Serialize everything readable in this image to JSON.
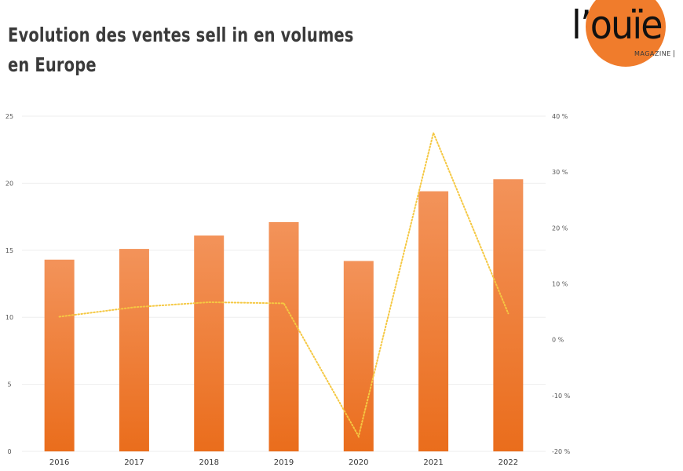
{
  "header": {
    "title_line1": "Evolution des ventes sell in en volumes",
    "title_line2": "en Europe"
  },
  "logo": {
    "word": "l’ouïe",
    "subtitle": "MAGAZINE"
  },
  "colors": {
    "bar_top": "#f3935a",
    "bar_bottom": "#ea6d1c",
    "line": "#f5c842",
    "grid": "#eeeeee",
    "logo_circle": "#f07c2c"
  },
  "chart_data": {
    "type": "bar",
    "categories": [
      "2016",
      "2017",
      "2018",
      "2019",
      "2020",
      "2021",
      "2022"
    ],
    "series": [
      {
        "type": "bar",
        "axis": "left",
        "values": [
          14.3,
          15.1,
          16.1,
          17.1,
          14.2,
          19.4,
          20.3
        ]
      },
      {
        "type": "line",
        "axis": "right",
        "style": "dotted",
        "values": [
          4.1,
          5.8,
          6.7,
          6.5,
          -17.3,
          37.0,
          4.7
        ]
      }
    ],
    "y_left": {
      "min": 0,
      "max": 25,
      "ticks": [
        "0",
        "5",
        "10",
        "15",
        "20",
        "25"
      ]
    },
    "y_right": {
      "min": -20,
      "max": 40,
      "ticks": [
        "-20 %",
        "-10 %",
        "0 %",
        "10 %",
        "20 %",
        "30 %",
        "40 %"
      ]
    },
    "grid": true,
    "legend": "none"
  }
}
